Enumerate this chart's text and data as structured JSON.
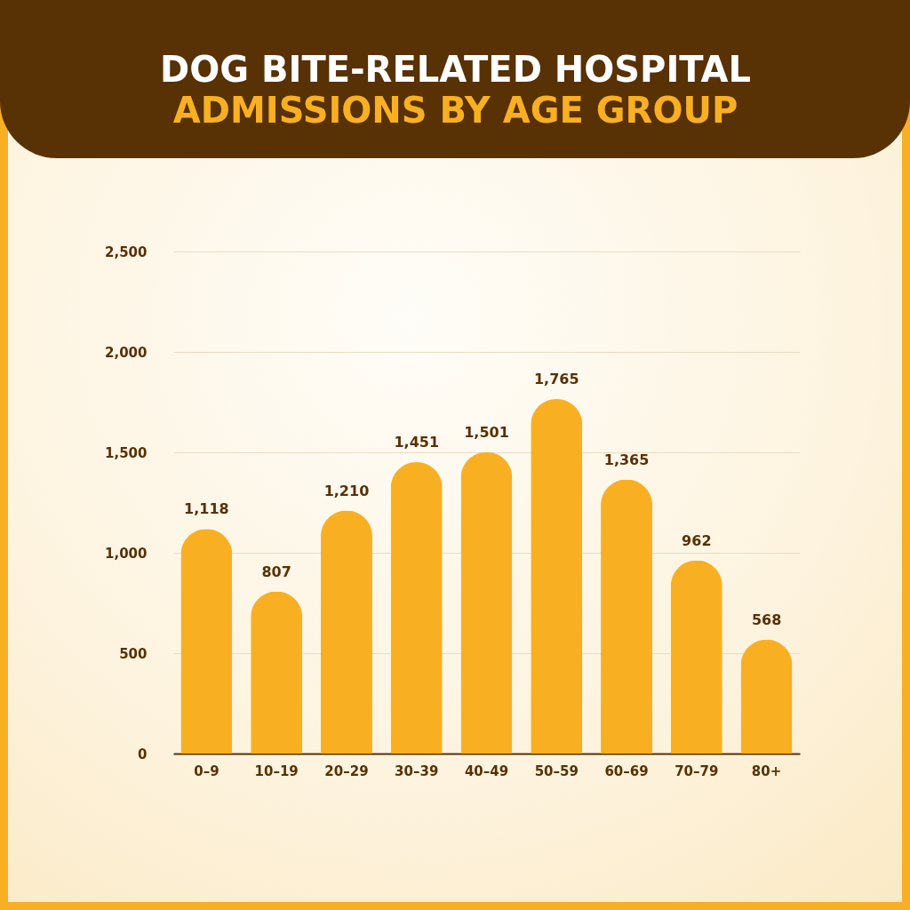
{
  "chart_data": {
    "type": "bar",
    "title": "DOG BITE-RELATED HOSPITAL",
    "subtitle": "ADMISSIONS BY AGE GROUP",
    "categories": [
      "0–9",
      "10–19",
      "20–29",
      "30–39",
      "40–49",
      "50–59",
      "60–69",
      "70–79",
      "80+"
    ],
    "values": [
      1118,
      807,
      1210,
      1451,
      1501,
      1765,
      1365,
      962,
      568
    ],
    "color": "#f8b022",
    "value_labels": [
      "1,118",
      "807",
      "1,210",
      "1,451",
      "1,501",
      "1,765",
      "1,365",
      "962",
      "568"
    ],
    "ylim": [
      0,
      2500
    ],
    "yticks": [
      0,
      {
        "value": 500,
        "label": "500"
      },
      {
        "value": 1000,
        "label": "1,000"
      },
      {
        "value": 1500,
        "label": "1,500"
      },
      {
        "value": 2000,
        "label": "2,000"
      },
      {
        "value": 2500,
        "label": "2,500"
      }
    ],
    "grid": "y"
  }
}
